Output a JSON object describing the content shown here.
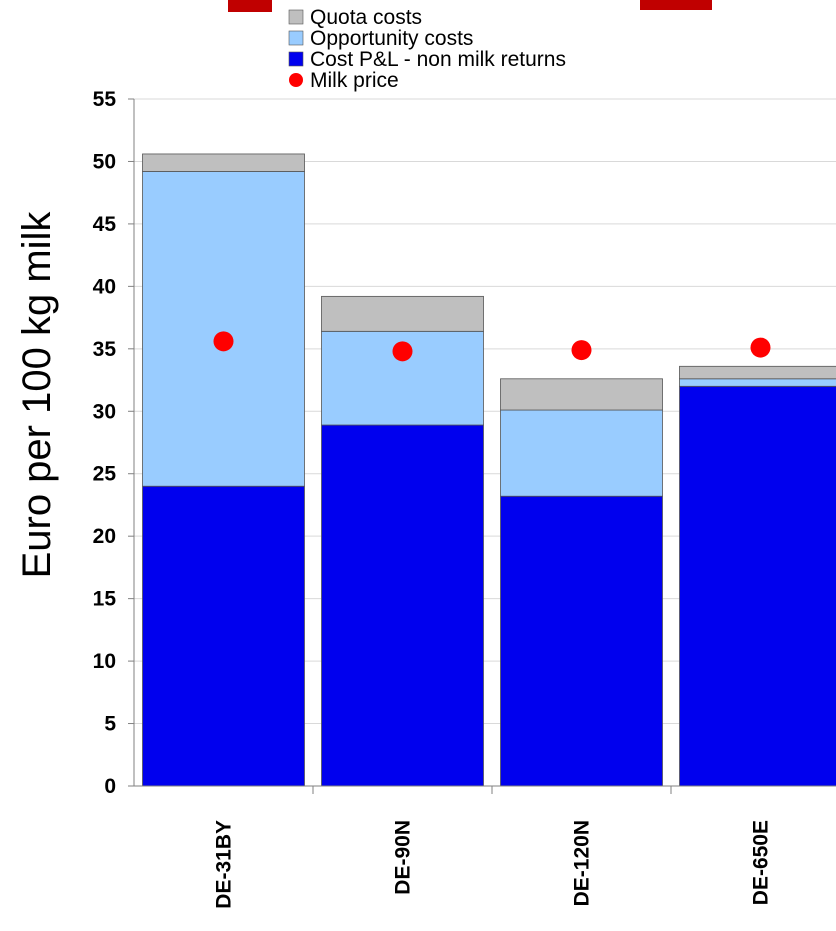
{
  "chart_data": {
    "type": "bar",
    "stacked": true,
    "categories": [
      "DE-31BY",
      "DE-90N",
      "DE-120N",
      "DE-650E"
    ],
    "series": [
      {
        "name": "Cost P&L - non milk returns",
        "color": "#0000ee",
        "values": [
          24.0,
          28.9,
          23.2,
          32.0
        ]
      },
      {
        "name": "Opportunity costs",
        "color": "#99ccff",
        "values": [
          25.2,
          7.5,
          6.9,
          0.6
        ]
      },
      {
        "name": "Quota costs",
        "color": "#bfbfbf",
        "values": [
          1.4,
          2.8,
          2.5,
          1.0
        ]
      }
    ],
    "markers": {
      "name": "Milk price",
      "color": "#ff0000",
      "values": [
        35.6,
        34.8,
        34.9,
        35.1
      ]
    },
    "legend_order": [
      "Quota costs",
      "Opportunity costs",
      "Cost P&L - non milk returns",
      "Milk price"
    ],
    "ylabel": "Euro per 100 kg milk",
    "ylim": [
      0,
      55
    ],
    "yticks": [
      0,
      5,
      10,
      15,
      20,
      25,
      30,
      35,
      40,
      45,
      50,
      55
    ],
    "grid": true,
    "legend_placement": "top-center",
    "title_color": "#c00000"
  }
}
